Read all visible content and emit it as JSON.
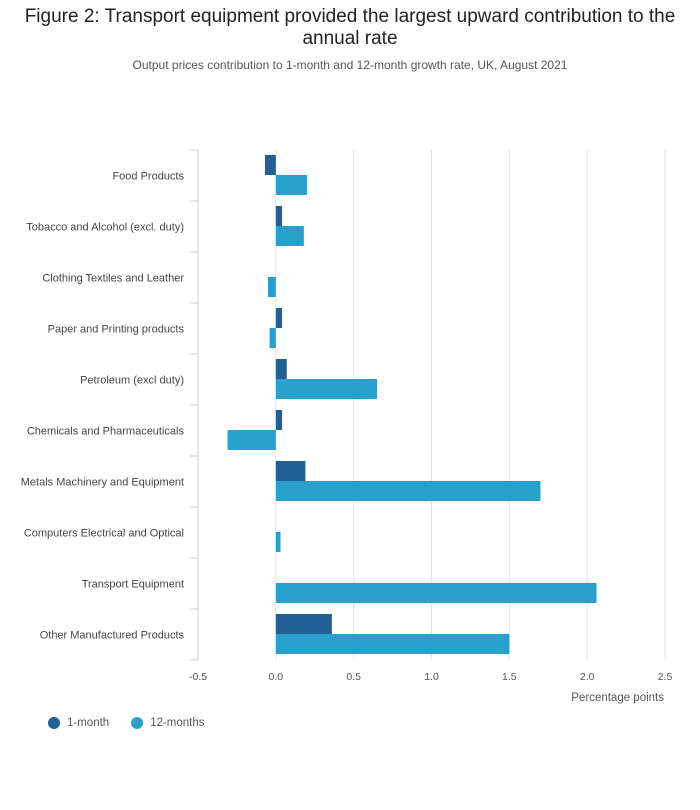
{
  "chart_data": {
    "type": "bar",
    "orientation": "horizontal",
    "title": "Figure 2: Transport equipment provided the largest upward contribution to the annual rate",
    "subtitle": "Output prices contribution to 1-month and 12-month growth rate, UK, August 2021",
    "xlabel": "Percentage points",
    "ylabel": "",
    "xlim": [
      -0.5,
      2.5
    ],
    "x_ticks": [
      "-0.5",
      "0.0",
      "0.5",
      "1.0",
      "1.5",
      "2.0",
      "2.5"
    ],
    "x_tick_values": [
      -0.5,
      0,
      0.5,
      1,
      1.5,
      2,
      2.5
    ],
    "grid": true,
    "legend_position": "bottom-left",
    "categories": [
      "Food Products",
      "Tobacco and Alcohol (excl. duty)",
      "Clothing Textiles and Leather",
      "Paper and Printing products",
      "Petroleum (excl duty)",
      "Chemicals and Pharmaceuticals",
      "Metals Machinery and Equipment",
      "Computers Electrical and Optical",
      "Transport Equipment",
      "Other Manufactured Products"
    ],
    "series": [
      {
        "name": "1-month",
        "color": "#206095",
        "values": [
          -0.07,
          0.04,
          0.0,
          0.04,
          0.07,
          0.04,
          0.19,
          0.0,
          0.0,
          0.36
        ]
      },
      {
        "name": "12-months",
        "color": "#27a0cc",
        "values": [
          0.2,
          0.18,
          -0.05,
          -0.04,
          0.65,
          -0.31,
          1.7,
          0.03,
          2.06,
          1.5
        ]
      }
    ]
  }
}
